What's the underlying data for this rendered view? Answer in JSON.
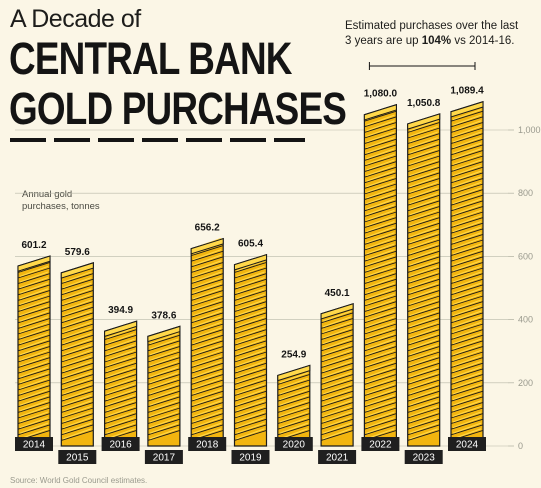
{
  "header": {
    "kicker": "A Decade of",
    "title_line1": "CENTRAL BANK",
    "title_line2": "GOLD PURCHASES"
  },
  "annotation": {
    "text_before": "Estimated purchases over the last 3 years are up ",
    "highlight": "104%",
    "text_after": " vs 2014-16."
  },
  "unit_label": "Annual gold purchases, tonnes",
  "source": "Source: World Gold Council estimates.",
  "colors": {
    "background": "#fbf6e6",
    "gold": "#f2b50f",
    "gold_highlight": "#ffd84a",
    "outline": "#1a1a1a",
    "label_box": "#1f1f1f",
    "grid": "#b8b8a8"
  },
  "chart_data": {
    "type": "bar",
    "categories": [
      "2014",
      "2015",
      "2016",
      "2017",
      "2018",
      "2019",
      "2020",
      "2021",
      "2022",
      "2023",
      "2024"
    ],
    "values": [
      601.2,
      579.6,
      394.9,
      378.6,
      656.2,
      605.4,
      254.9,
      450.1,
      1080.0,
      1050.8,
      1089.4
    ],
    "value_labels": [
      "601.2",
      "579.6",
      "394.9",
      "378.6",
      "656.2",
      "605.4",
      "254.9",
      "450.1",
      "1,080.0",
      "1,050.8",
      "1,089.4"
    ],
    "ylim": [
      0,
      1000
    ],
    "yticks": [
      0,
      200,
      400,
      600,
      800,
      1000
    ],
    "ytick_labels": [
      "0",
      "200",
      "400",
      "600",
      "800",
      "1,000"
    ],
    "ylabel": "Annual gold purchases, tonnes",
    "xlabel": "",
    "grid": true,
    "axis_side": "right"
  }
}
